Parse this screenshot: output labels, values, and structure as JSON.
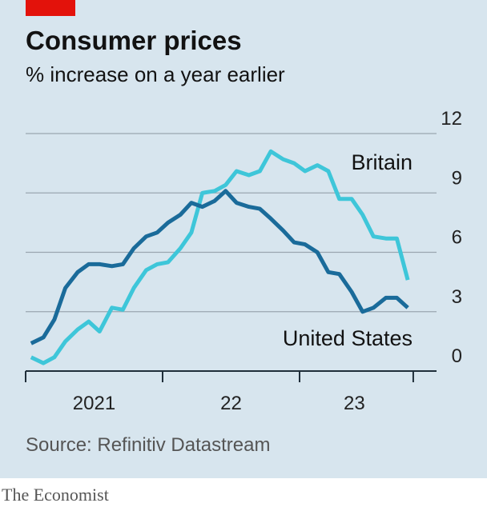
{
  "chart_data": {
    "type": "line",
    "title": "Consumer prices",
    "subtitle": "% increase on a year earlier",
    "source": "Source: Refinitiv Datastream",
    "brand": "The Economist",
    "x": [
      2021.04,
      2021.13,
      2021.21,
      2021.29,
      2021.38,
      2021.46,
      2021.54,
      2021.63,
      2021.71,
      2021.79,
      2021.88,
      2021.96,
      2022.04,
      2022.13,
      2022.21,
      2022.29,
      2022.38,
      2022.46,
      2022.54,
      2022.63,
      2022.71,
      2022.79,
      2022.88,
      2022.96,
      2023.04,
      2023.13,
      2023.21,
      2023.29,
      2023.38,
      2023.46,
      2023.54,
      2023.63,
      2023.71,
      2023.79
    ],
    "series": [
      {
        "name": "Britain",
        "color": "#3ec6d9",
        "values": [
          0.7,
          0.4,
          0.7,
          1.5,
          2.1,
          2.5,
          2.0,
          3.2,
          3.1,
          4.2,
          5.1,
          5.4,
          5.5,
          6.2,
          7.0,
          9.0,
          9.1,
          9.4,
          10.1,
          9.9,
          10.1,
          11.1,
          10.7,
          10.5,
          10.1,
          10.4,
          10.1,
          8.7,
          8.7,
          7.9,
          6.8,
          6.7,
          6.7,
          4.6
        ]
      },
      {
        "name": "United States",
        "color": "#1a6b9a",
        "values": [
          1.4,
          1.7,
          2.6,
          4.2,
          5.0,
          5.4,
          5.4,
          5.3,
          5.4,
          6.2,
          6.8,
          7.0,
          7.5,
          7.9,
          8.5,
          8.3,
          8.6,
          9.1,
          8.5,
          8.3,
          8.2,
          7.7,
          7.1,
          6.5,
          6.4,
          6.0,
          5.0,
          4.9,
          4.0,
          3.0,
          3.2,
          3.7,
          3.7,
          3.2
        ]
      }
    ],
    "xlim": [
      2021,
      2024
    ],
    "xticks": [
      2021,
      2022,
      2023,
      2023.83
    ],
    "xtick_labels": [
      {
        "value": 2021.5,
        "label": "2021"
      },
      {
        "value": 2022.5,
        "label": "22"
      },
      {
        "value": 2023.4,
        "label": "23"
      }
    ],
    "ylim": [
      0,
      12
    ],
    "yticks": [
      0,
      3,
      6,
      9,
      12
    ],
    "grid": true
  }
}
